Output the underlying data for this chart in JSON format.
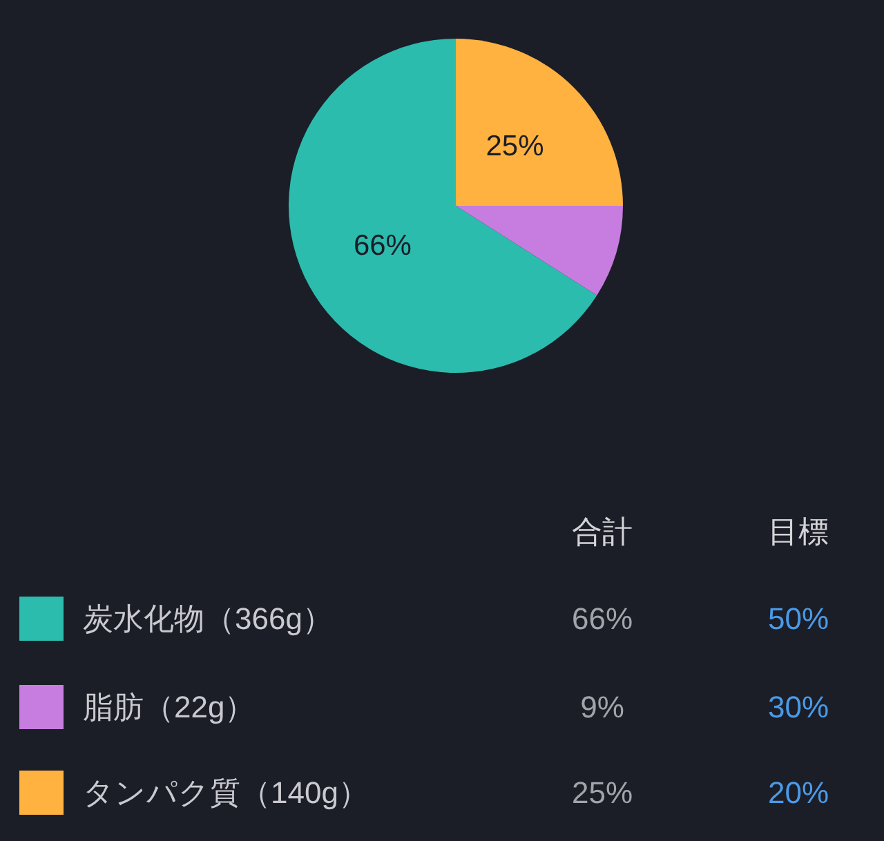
{
  "chart_data": {
    "type": "pie",
    "categories": [
      "炭水化物（366g）",
      "脂肪（22g）",
      "タンパク質（140g）"
    ],
    "values": [
      66,
      9,
      25
    ],
    "colors": [
      "#2bbcae",
      "#c77ddf",
      "#ffb23f"
    ],
    "value_labels": [
      "66%",
      "9%",
      "25%"
    ],
    "legend": "bottom",
    "annotations": [
      "合計",
      "目標",
      "50%",
      "30%",
      "20%"
    ]
  }
}
